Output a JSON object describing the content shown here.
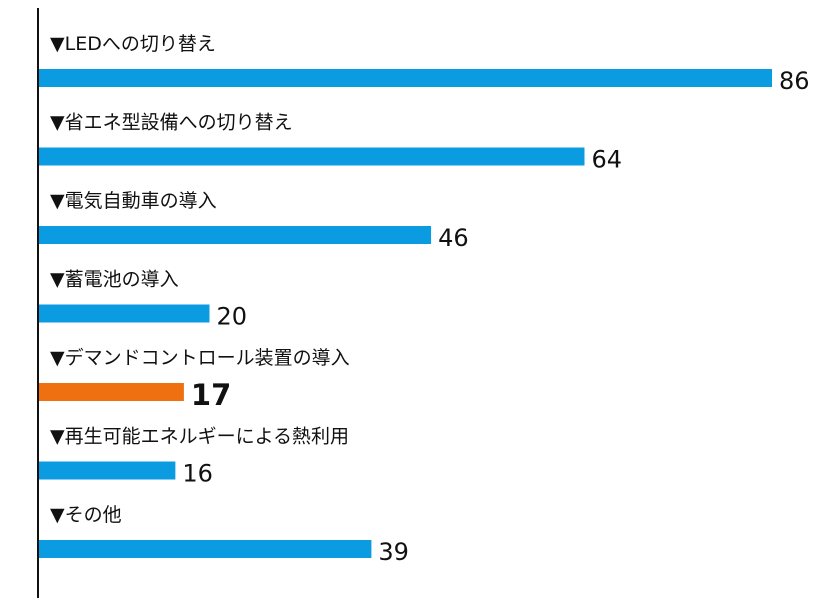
{
  "chart_data": {
    "type": "bar",
    "orientation": "horizontal",
    "categories": [
      "LEDへの切り替え",
      "省エネ型設備への切り替え",
      "電気自動車の導入",
      "蓄電池の導入",
      "デマンドコントロール装置の導入",
      "再生可能エネルギーによる熱利用",
      "その他"
    ],
    "values": [
      86,
      64,
      46,
      20,
      17,
      16,
      39
    ],
    "label_prefix": "▼",
    "highlight_index": 4,
    "xlim": [
      0,
      86
    ],
    "grid": false,
    "legend": "none",
    "colors": {
      "bar": "#0a9be0",
      "highlight": "#ef7010",
      "axis": "#111111",
      "text": "#111111"
    }
  }
}
